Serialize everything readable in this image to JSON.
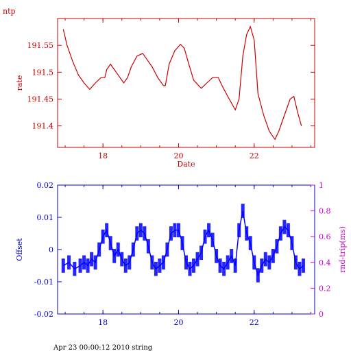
{
  "page": {
    "corner_label": "ntp",
    "footer": "Apr 23 00:00:12 2010 string"
  },
  "colors": {
    "top": "#cc0000",
    "bottom_axis": "#0000cc",
    "right_axis": "#cc00cc",
    "line_top": "#cc0000",
    "line_bottom": "#0000ff"
  },
  "chart_data": [
    {
      "type": "line",
      "title": "",
      "xlabel": "Date",
      "ylabel": "rate",
      "xlim": [
        16.8,
        23.6
      ],
      "ylim": [
        191.36,
        191.6
      ],
      "x_ticks": [
        18,
        20,
        22
      ],
      "x_tick_labels": [
        "18",
        "20",
        "22"
      ],
      "y_ticks": [
        191.4,
        191.45,
        191.5,
        191.55
      ],
      "y_tick_labels": [
        "191.4",
        "191.45",
        "191.5",
        "191.55"
      ],
      "grid": false,
      "series": [
        {
          "x": [
            16.95,
            17.05,
            17.2,
            17.35,
            17.5,
            17.65,
            17.8,
            17.95,
            18.05,
            18.1,
            18.2,
            18.3,
            18.4,
            18.55,
            18.65,
            18.75,
            18.9,
            19.05,
            19.15,
            19.3,
            19.45,
            19.6,
            19.65,
            19.75,
            19.9,
            20.05,
            20.15,
            20.25,
            20.4,
            20.6,
            20.75,
            20.9,
            21.05,
            21.15,
            21.3,
            21.5,
            21.6,
            21.7,
            21.8,
            21.9,
            22.0,
            22.1,
            22.25,
            22.4,
            22.55,
            22.65,
            22.8,
            22.95,
            23.05,
            23.15,
            23.25
          ],
          "y": [
            191.58,
            191.55,
            191.52,
            191.495,
            191.48,
            191.468,
            191.48,
            191.49,
            191.49,
            191.505,
            191.515,
            191.505,
            191.495,
            191.48,
            191.49,
            191.51,
            191.53,
            191.535,
            191.525,
            191.51,
            191.49,
            191.475,
            191.475,
            191.515,
            191.54,
            191.552,
            191.545,
            191.52,
            191.485,
            191.47,
            191.48,
            191.49,
            191.49,
            191.475,
            191.455,
            191.43,
            191.45,
            191.53,
            191.57,
            191.585,
            191.56,
            191.46,
            191.42,
            191.39,
            191.375,
            191.39,
            191.42,
            191.45,
            191.455,
            191.425,
            191.4
          ]
        }
      ]
    },
    {
      "type": "line",
      "title": "",
      "xlabel": "",
      "ylabel": "Offset",
      "ylabel_right": "rnd-trip(ms)",
      "xlim": [
        16.8,
        23.6
      ],
      "ylim": [
        -0.02,
        0.02
      ],
      "ylim_right": [
        0,
        1
      ],
      "x_ticks": [
        18,
        20,
        22
      ],
      "x_tick_labels": [
        "18",
        "20",
        "22"
      ],
      "y_ticks": [
        -0.02,
        -0.01,
        0,
        0.01,
        0.02
      ],
      "y_tick_labels": [
        "-0.02",
        "-0.01",
        "0",
        "0.01",
        "0.02"
      ],
      "y_ticks_right": [
        0,
        0.2,
        0.4,
        0.6,
        0.8,
        1
      ],
      "y_tick_labels_right": [
        "0",
        "0.2",
        "0.4",
        "0.6",
        "0.8",
        "1"
      ],
      "grid": false,
      "series": [
        {
          "x": [
            16.95,
            17.1,
            17.25,
            17.4,
            17.5,
            17.6,
            17.7,
            17.8,
            17.9,
            18.0,
            18.1,
            18.2,
            18.3,
            18.4,
            18.5,
            18.6,
            18.7,
            18.8,
            18.9,
            19.0,
            19.1,
            19.2,
            19.3,
            19.4,
            19.5,
            19.6,
            19.7,
            19.8,
            19.9,
            20.0,
            20.1,
            20.2,
            20.3,
            20.4,
            20.5,
            20.6,
            20.7,
            20.8,
            20.9,
            21.0,
            21.1,
            21.2,
            21.3,
            21.4,
            21.5,
            21.6,
            21.7,
            21.8,
            21.9,
            22.0,
            22.1,
            22.2,
            22.3,
            22.4,
            22.5,
            22.6,
            22.7,
            22.8,
            22.9,
            23.0,
            23.1,
            23.2,
            23.3
          ],
          "y": [
            -0.005,
            -0.004,
            -0.006,
            -0.005,
            -0.004,
            -0.005,
            -0.003,
            -0.004,
            0.0,
            0.004,
            0.006,
            0.002,
            -0.002,
            0.0,
            -0.003,
            -0.005,
            -0.004,
            0.0,
            0.005,
            0.006,
            0.005,
            0.001,
            -0.004,
            -0.006,
            -0.005,
            -0.004,
            0.0,
            0.005,
            0.006,
            0.006,
            0.002,
            -0.004,
            -0.006,
            -0.005,
            -0.003,
            -0.001,
            0.004,
            0.006,
            0.003,
            -0.002,
            -0.005,
            -0.006,
            -0.004,
            -0.002,
            -0.005,
            0.006,
            0.012,
            0.005,
            0.002,
            -0.004,
            -0.008,
            -0.005,
            -0.003,
            -0.004,
            -0.002,
            0.001,
            0.005,
            0.007,
            0.006,
            0.002,
            -0.004,
            -0.006,
            -0.005
          ]
        }
      ]
    }
  ]
}
